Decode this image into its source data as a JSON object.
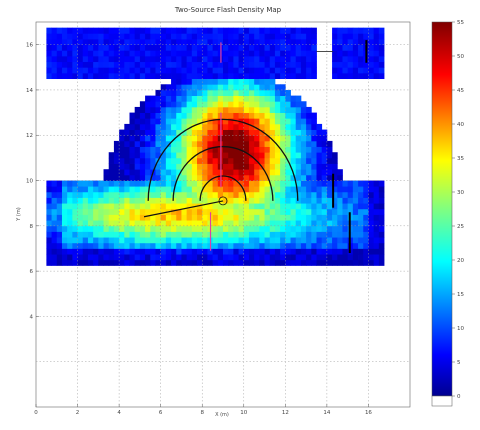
{
  "chart_data": {
    "type": "heatmap",
    "title": "Two-Source Flash Density Map",
    "xlabel": "X (m)",
    "ylabel": "Y (m)",
    "xlim": [
      0,
      18
    ],
    "ylim": [
      0,
      17
    ],
    "x_ticks": [
      "0",
      "2",
      "4",
      "6",
      "8",
      "10",
      "12",
      "14",
      "16"
    ],
    "y_ticks": [
      "4",
      "6",
      "8",
      "10",
      "12",
      "14",
      "16"
    ],
    "grid": true,
    "colorbar": {
      "min": 0,
      "max": 55,
      "ticks": [
        "0",
        "5",
        "10",
        "15",
        "20",
        "25",
        "30",
        "35",
        "40",
        "45",
        "50",
        "55"
      ],
      "colors": [
        "#00008f",
        "#0000ff",
        "#0080ff",
        "#00ffff",
        "#80ff80",
        "#ffff00",
        "#ff8000",
        "#ff0000",
        "#800000"
      ]
    },
    "regions": [
      {
        "name": "upper-strip-left",
        "x": [
          0.5,
          13.5
        ],
        "y": [
          14.6,
          16.7
        ],
        "mean_value": 5
      },
      {
        "name": "upper-strip-right",
        "x": [
          14.3,
          16.8
        ],
        "y": [
          14.6,
          16.7
        ],
        "mean_value": 5
      },
      {
        "name": "semicircle-dome",
        "center": [
          9,
          9.1
        ],
        "radius": 5.8,
        "peak_value": 50,
        "peak_at": [
          9.6,
          11.5
        ]
      },
      {
        "name": "lower-block",
        "x": [
          0.6,
          16.7
        ],
        "y": [
          6.3,
          10.0
        ],
        "peak_value": 35
      }
    ],
    "arcs_radius": [
      1.1,
      2.4,
      3.6
    ],
    "arc_center": [
      9,
      9.1
    ]
  }
}
